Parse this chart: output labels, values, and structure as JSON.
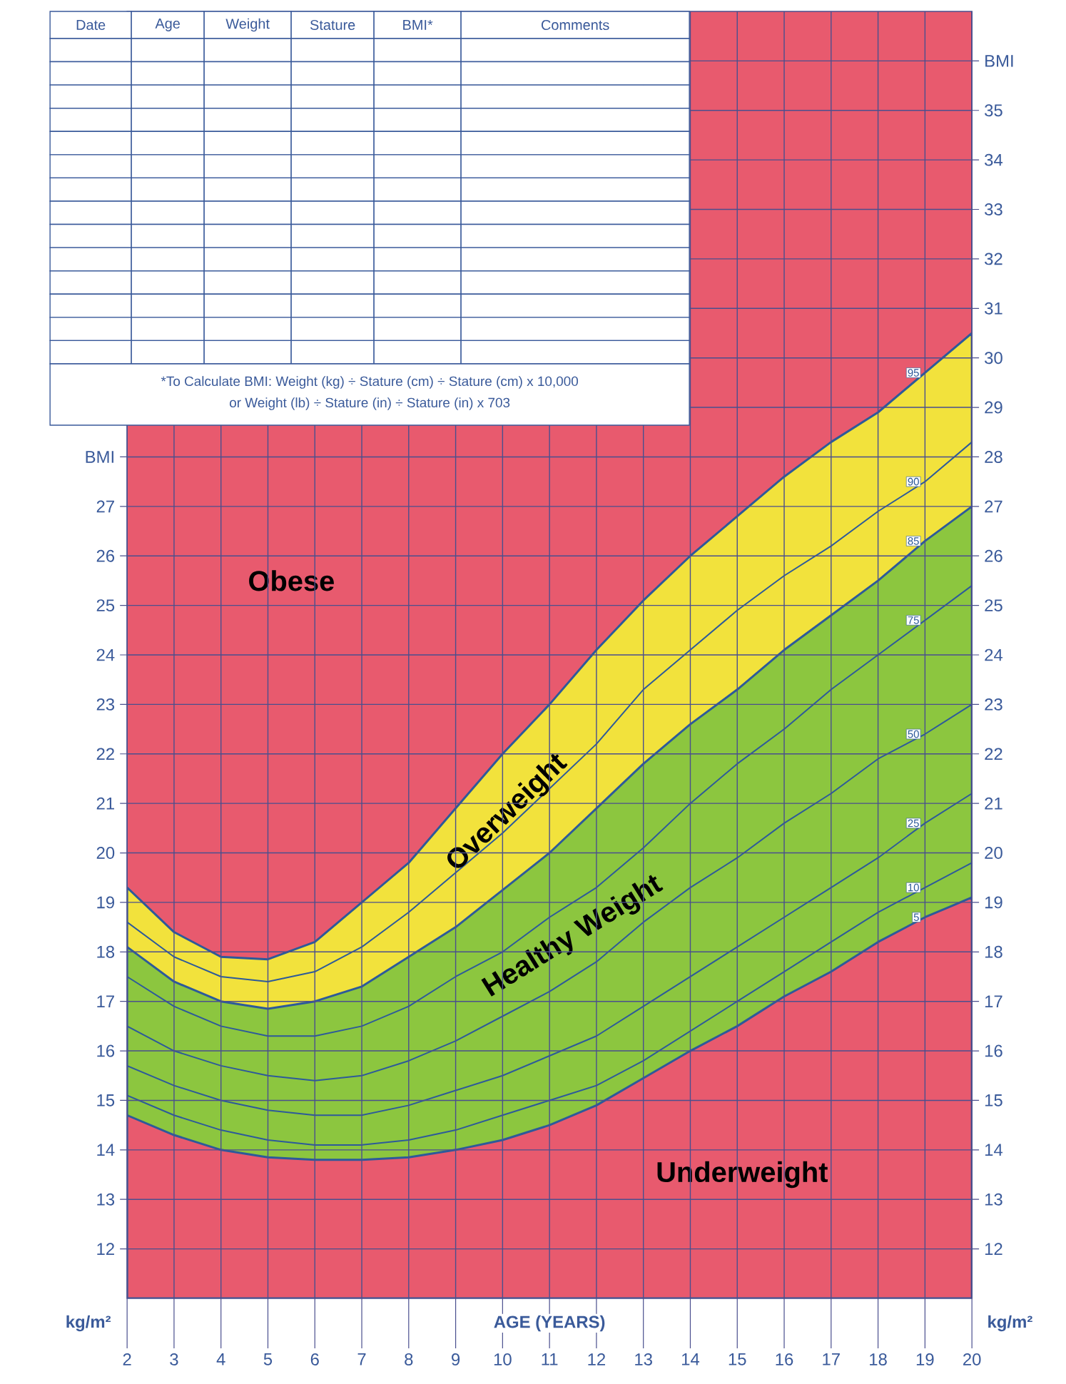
{
  "chart_data": {
    "type": "line",
    "xlabel": "AGE (YEARS)",
    "ylabel": "kg/m²",
    "y2label": "kg/m²",
    "x": [
      2,
      3,
      4,
      5,
      6,
      7,
      8,
      9,
      10,
      11,
      12,
      13,
      14,
      15,
      16,
      17,
      18,
      19,
      20
    ],
    "series": [
      {
        "name": "5",
        "type": "area",
        "color": "#e85a6e",
        "values": [
          14.7,
          14.3,
          14.0,
          13.85,
          13.8,
          13.8,
          13.85,
          14.0,
          14.2,
          14.5,
          14.9,
          15.45,
          16.0,
          16.5,
          17.1,
          17.6,
          18.2,
          18.7,
          19.1
        ]
      },
      {
        "name": "10",
        "color": "#2d5a9a",
        "values": [
          15.1,
          14.7,
          14.4,
          14.2,
          14.1,
          14.1,
          14.2,
          14.4,
          14.7,
          15.0,
          15.3,
          15.8,
          16.4,
          17.0,
          17.6,
          18.2,
          18.8,
          19.3,
          19.8
        ]
      },
      {
        "name": "25",
        "color": "#2d5a9a",
        "values": [
          15.7,
          15.3,
          15.0,
          14.8,
          14.7,
          14.7,
          14.9,
          15.2,
          15.5,
          15.9,
          16.3,
          16.9,
          17.5,
          18.1,
          18.7,
          19.3,
          19.9,
          20.6,
          21.2
        ]
      },
      {
        "name": "50",
        "color": "#2d5a9a",
        "values": [
          16.5,
          16.0,
          15.7,
          15.5,
          15.4,
          15.5,
          15.8,
          16.2,
          16.7,
          17.2,
          17.8,
          18.6,
          19.3,
          19.9,
          20.6,
          21.2,
          21.9,
          22.4,
          23.0
        ]
      },
      {
        "name": "75",
        "color": "#2d5a9a",
        "values": [
          17.5,
          16.9,
          16.5,
          16.3,
          16.3,
          16.5,
          16.9,
          17.5,
          18.0,
          18.7,
          19.3,
          20.1,
          21.0,
          21.8,
          22.5,
          23.3,
          24.0,
          24.7,
          25.4
        ]
      },
      {
        "name": "85",
        "type": "area",
        "color": "#8cc63f",
        "values": [
          18.1,
          17.4,
          17.0,
          16.85,
          17.0,
          17.3,
          17.9,
          18.5,
          19.25,
          20.0,
          20.9,
          21.8,
          22.6,
          23.3,
          24.1,
          24.8,
          25.5,
          26.3,
          27.0
        ]
      },
      {
        "name": "90",
        "color": "#2d5a9a",
        "values": [
          18.6,
          17.9,
          17.5,
          17.4,
          17.6,
          18.1,
          18.8,
          19.6,
          20.4,
          21.3,
          22.2,
          23.3,
          24.1,
          24.9,
          25.6,
          26.2,
          26.9,
          27.5,
          28.3
        ]
      },
      {
        "name": "95",
        "type": "area",
        "color": "#f2e23c",
        "values": [
          19.3,
          18.4,
          17.9,
          17.85,
          18.2,
          19.0,
          19.8,
          20.9,
          22.0,
          23.0,
          24.1,
          25.1,
          26.0,
          26.8,
          27.6,
          28.3,
          28.9,
          29.7,
          30.5
        ]
      }
    ],
    "xlim": [
      2,
      20
    ],
    "xticks": [
      2,
      3,
      4,
      5,
      6,
      7,
      8,
      9,
      10,
      11,
      12,
      13,
      14,
      15,
      16,
      17,
      18,
      19,
      20
    ],
    "ylim": [
      11,
      37
    ],
    "yticks": [
      12,
      13,
      14,
      15,
      16,
      17,
      18,
      19,
      20,
      21,
      22,
      23,
      24,
      25,
      26,
      27,
      {
        "value": 28,
        "label": "BMI"
      }
    ],
    "y2lim": [
      11,
      37
    ],
    "y2ticks": [
      12,
      13,
      14,
      15,
      16,
      17,
      18,
      19,
      20,
      21,
      22,
      23,
      24,
      25,
      26,
      27,
      28,
      29,
      30,
      31,
      32,
      33,
      34,
      35,
      {
        "value": 36,
        "label": "BMI"
      }
    ],
    "grid": true,
    "bands": [
      {
        "axis": "y",
        "from": 11,
        "to": 37,
        "color": "#e85a6e"
      }
    ],
    "annotations": [
      "Date",
      "Age",
      "Weight",
      "Stature",
      "BMI*",
      "Comments",
      "*To Calculate BMI: Weight (kg) ÷ Stature (cm) ÷ Stature (cm) x 10,000",
      "or Weight (lb) ÷ Stature (in) ÷ Stature (in) x 703",
      "Obese",
      "Overweight",
      "Healthy Weight",
      "Underweight"
    ]
  }
}
